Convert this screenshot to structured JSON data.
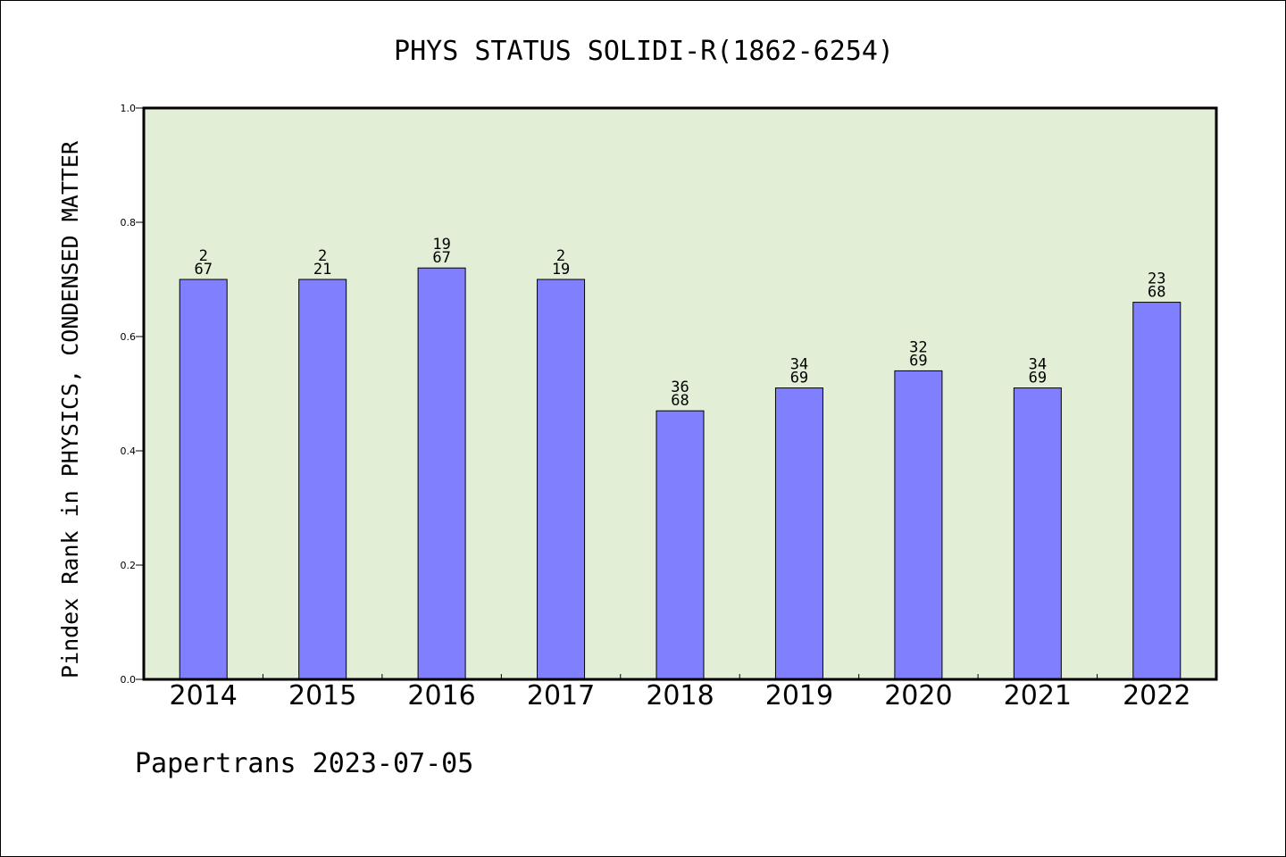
{
  "chart_data": {
    "type": "bar",
    "title": "PHYS STATUS SOLIDI-R(1862-6254)",
    "xlabel": "",
    "ylabel": "Pindex Rank in PHYSICS, CONDENSED MATTER",
    "categories": [
      "2014",
      "2015",
      "2016",
      "2017",
      "2018",
      "2019",
      "2020",
      "2021",
      "2022"
    ],
    "values": [
      0.7,
      0.7,
      0.72,
      0.7,
      0.47,
      0.51,
      0.54,
      0.51,
      0.66
    ],
    "bar_labels": [
      [
        "2",
        "67"
      ],
      [
        "2",
        "21"
      ],
      [
        "19",
        "67"
      ],
      [
        "2",
        "19"
      ],
      [
        "36",
        "68"
      ],
      [
        "34",
        "69"
      ],
      [
        "32",
        "69"
      ],
      [
        "34",
        "69"
      ],
      [
        "23",
        "68"
      ]
    ],
    "ylim": [
      0,
      1.0
    ],
    "yticks": [
      "0.0",
      "0.2",
      "0.4",
      "0.6",
      "0.8",
      "1.0"
    ],
    "grid": false,
    "colors": {
      "plot_background": "#e2efd6",
      "bar_fill": "#8080ff",
      "bar_stroke": "#000000"
    }
  },
  "footer": "Papertrans 2023-07-05"
}
